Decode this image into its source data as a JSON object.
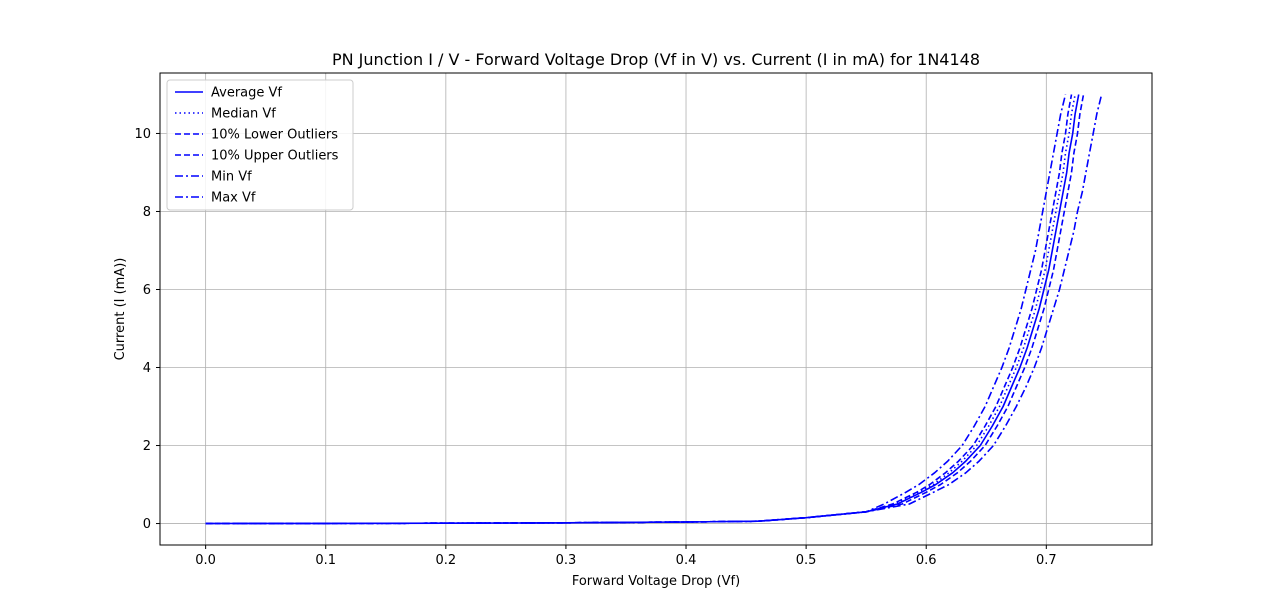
{
  "chart_data": {
    "type": "line",
    "title": "PN Junction I / V - Forward Voltage Drop (Vf in V) vs. Current (I in mA) for 1N4148",
    "xlabel": "Forward Voltage Drop (Vf)",
    "ylabel": "Current (I (mA))",
    "xlim": [
      -0.038,
      0.788
    ],
    "ylim": [
      -0.55,
      11.55
    ],
    "xticks": [
      0.0,
      0.1,
      0.2,
      0.3,
      0.4,
      0.5,
      0.6,
      0.7
    ],
    "xtick_labels": [
      "0.0",
      "0.1",
      "0.2",
      "0.3",
      "0.4",
      "0.5",
      "0.6",
      "0.7"
    ],
    "yticks": [
      0,
      2,
      4,
      6,
      8,
      10
    ],
    "ytick_labels": [
      "0",
      "2",
      "4",
      "6",
      "8",
      "10"
    ],
    "grid": true,
    "legend_position": "upper-left",
    "color": "#0000ff",
    "y": [
      0,
      0.005,
      0.01,
      0.02,
      0.04,
      0.06,
      0.15,
      0.3,
      0.5,
      0.8,
      1.0,
      1.3,
      1.6,
      2.0,
      2.5,
      3.0,
      3.5,
      4.0,
      4.5,
      5.0,
      5.5,
      6.0,
      6.5,
      7.0,
      7.5,
      8.0,
      8.5,
      9.0,
      9.5,
      10.0,
      10.5,
      11.0
    ],
    "series": [
      {
        "name": "Average Vf",
        "style": "solid",
        "x": [
          0.0,
          0.1,
          0.2,
          0.3,
          0.4,
          0.46,
          0.5,
          0.55,
          0.576,
          0.596,
          0.608,
          0.622,
          0.633,
          0.645,
          0.655,
          0.664,
          0.671,
          0.678,
          0.684,
          0.689,
          0.694,
          0.698,
          0.702,
          0.705,
          0.708,
          0.711,
          0.714,
          0.717,
          0.719,
          0.722,
          0.724,
          0.727
        ]
      },
      {
        "name": "Median Vf",
        "style": "dotted",
        "x": [
          0.0,
          0.1,
          0.2,
          0.3,
          0.4,
          0.46,
          0.5,
          0.55,
          0.574,
          0.594,
          0.606,
          0.619,
          0.63,
          0.642,
          0.652,
          0.661,
          0.668,
          0.675,
          0.681,
          0.686,
          0.691,
          0.695,
          0.699,
          0.702,
          0.705,
          0.708,
          0.711,
          0.714,
          0.716,
          0.719,
          0.721,
          0.724
        ]
      },
      {
        "name": "10% Lower Outliers",
        "style": "dashed",
        "x": [
          0.0,
          0.1,
          0.2,
          0.3,
          0.4,
          0.46,
          0.5,
          0.55,
          0.572,
          0.592,
          0.603,
          0.616,
          0.627,
          0.639,
          0.649,
          0.658,
          0.665,
          0.672,
          0.678,
          0.683,
          0.688,
          0.692,
          0.696,
          0.699,
          0.702,
          0.705,
          0.708,
          0.711,
          0.713,
          0.716,
          0.718,
          0.721
        ]
      },
      {
        "name": "10% Upper Outliers",
        "style": "dashed",
        "x": [
          0.0,
          0.1,
          0.2,
          0.3,
          0.4,
          0.46,
          0.5,
          0.55,
          0.58,
          0.6,
          0.612,
          0.626,
          0.637,
          0.649,
          0.659,
          0.668,
          0.675,
          0.682,
          0.688,
          0.693,
          0.698,
          0.702,
          0.706,
          0.709,
          0.712,
          0.715,
          0.718,
          0.721,
          0.723,
          0.726,
          0.728,
          0.731
        ]
      },
      {
        "name": "Min Vf",
        "style": "dashdot",
        "x": [
          0.0,
          0.1,
          0.2,
          0.3,
          0.4,
          0.46,
          0.5,
          0.55,
          0.565,
          0.583,
          0.594,
          0.607,
          0.618,
          0.63,
          0.64,
          0.649,
          0.656,
          0.663,
          0.669,
          0.674,
          0.679,
          0.683,
          0.687,
          0.691,
          0.694,
          0.697,
          0.7,
          0.703,
          0.706,
          0.709,
          0.712,
          0.716
        ]
      },
      {
        "name": "Max Vf",
        "style": "dashdot",
        "x": [
          0.0,
          0.1,
          0.2,
          0.3,
          0.4,
          0.46,
          0.5,
          0.55,
          0.586,
          0.606,
          0.619,
          0.633,
          0.644,
          0.656,
          0.666,
          0.675,
          0.683,
          0.69,
          0.696,
          0.701,
          0.706,
          0.711,
          0.715,
          0.719,
          0.723,
          0.726,
          0.73,
          0.733,
          0.736,
          0.739,
          0.742,
          0.746
        ]
      }
    ]
  }
}
